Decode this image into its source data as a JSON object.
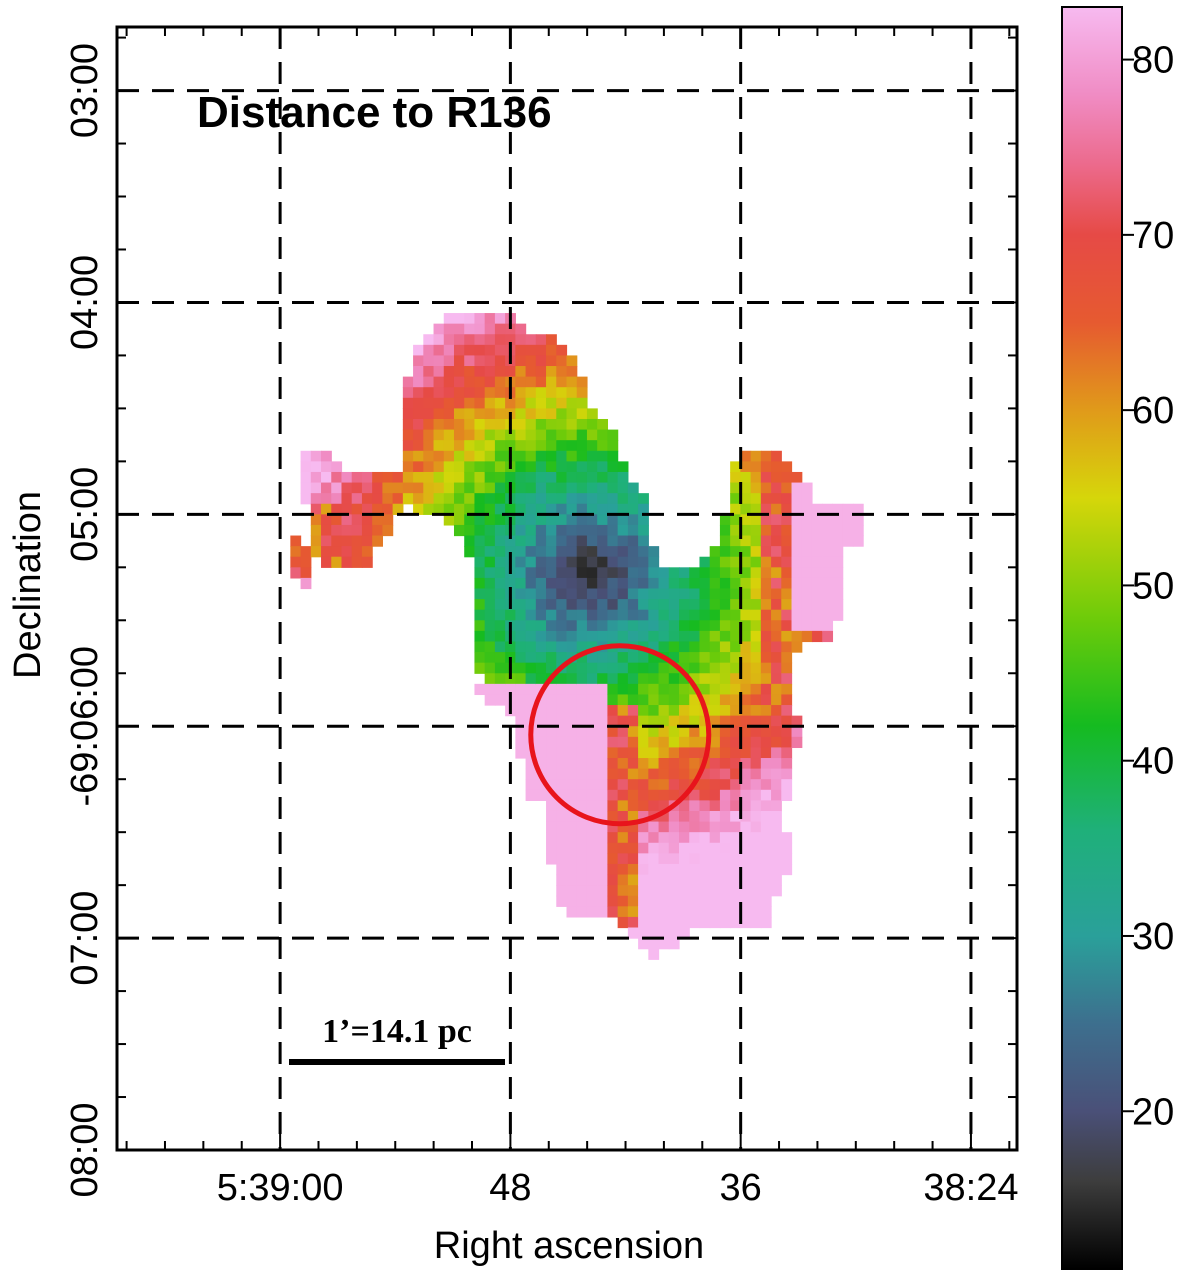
{
  "chart_data": {
    "type": "heatmap",
    "title": "Distance to R136",
    "xlabel": "Right ascension",
    "ylabel": "Declination",
    "x_ticks": [
      {
        "ra_sec": 60,
        "label": "5:39:00"
      },
      {
        "ra_sec": 48,
        "label": "48"
      },
      {
        "ra_sec": 36,
        "label": "36"
      },
      {
        "ra_sec": 24,
        "label": "38:24"
      }
    ],
    "y_ticks": [
      {
        "dec_min": 3,
        "label": "03:00"
      },
      {
        "dec_min": 4,
        "label": "04:00"
      },
      {
        "dec_min": 5,
        "label": "05:00"
      },
      {
        "dec_min": 6,
        "label": "-69:06:00"
      },
      {
        "dec_min": 7,
        "label": "07:00"
      },
      {
        "dec_min": 8,
        "label": "08:00"
      }
    ],
    "xlim": [
      68.5,
      21.6
    ],
    "ylim": [
      2.7,
      8.0
    ],
    "grid": "dashed",
    "colorbar": {
      "range": [
        11,
        83
      ],
      "ticks": [
        20,
        30,
        40,
        50,
        60,
        70,
        80
      ],
      "colors": [
        {
          "v": 11,
          "c": "#000000"
        },
        {
          "v": 16,
          "c": "#3d3d3d"
        },
        {
          "v": 20,
          "c": "#4a5078"
        },
        {
          "v": 25,
          "c": "#3d6f8e"
        },
        {
          "v": 30,
          "c": "#2aa09a"
        },
        {
          "v": 36,
          "c": "#1fb07a"
        },
        {
          "v": 42,
          "c": "#15bb20"
        },
        {
          "v": 48,
          "c": "#6ccb0a"
        },
        {
          "v": 55,
          "c": "#d6d60a"
        },
        {
          "v": 60,
          "c": "#e09a1a"
        },
        {
          "v": 65,
          "c": "#e65a30"
        },
        {
          "v": 70,
          "c": "#e64a46"
        },
        {
          "v": 74,
          "c": "#ec6a8c"
        },
        {
          "v": 78,
          "c": "#f08cc4"
        },
        {
          "v": 83,
          "c": "#f7baf0"
        }
      ]
    },
    "annotations": {
      "scale_bar_label": "1’=14.1 pc",
      "circle_color": "#e8141c",
      "circle_center": {
        "ra_sec": 42.3,
        "dec_min": 6.04
      },
      "circle_radius_arcmin": 0.42
    },
    "region": {
      "cell_deg_ra_sec": 0.533,
      "cell_arcmin": 0.05,
      "ridge_color_value": 66,
      "R136_center": {
        "ra_sec": 43.8,
        "dec_min": 5.28
      },
      "vertex_ra_sec_dec_min": [
        [
          58.6,
          5.11
        ],
        [
          58.8,
          4.7
        ],
        [
          57.6,
          4.7
        ],
        [
          56.5,
          4.82
        ],
        [
          53.4,
          4.82
        ],
        [
          53.8,
          4.5
        ],
        [
          52.8,
          4.2
        ],
        [
          51.2,
          4.05
        ],
        [
          48.2,
          4.05
        ],
        [
          47.4,
          4.12
        ],
        [
          45.2,
          4.18
        ],
        [
          44.4,
          4.35
        ],
        [
          43.4,
          4.55
        ],
        [
          42.4,
          4.62
        ],
        [
          42.0,
          4.8
        ],
        [
          41.0,
          4.9
        ],
        [
          40.4,
          5.25
        ],
        [
          38.4,
          5.25
        ],
        [
          37.2,
          5.15
        ],
        [
          36.2,
          4.7
        ],
        [
          34.2,
          4.7
        ],
        [
          31.8,
          4.95
        ],
        [
          29.6,
          4.95
        ],
        [
          29.4,
          5.1
        ],
        [
          30.8,
          5.2
        ],
        [
          31.0,
          5.6
        ],
        [
          32.8,
          5.6
        ],
        [
          33.6,
          5.8
        ],
        [
          32.8,
          6.0
        ],
        [
          33.8,
          6.4
        ],
        [
          33.2,
          6.65
        ],
        [
          34.2,
          6.8
        ],
        [
          34.2,
          6.97
        ],
        [
          38.6,
          6.97
        ],
        [
          39.8,
          7.05
        ],
        [
          40.6,
          7.1
        ],
        [
          42.4,
          6.92
        ],
        [
          45.2,
          6.92
        ],
        [
          45.4,
          6.85
        ],
        [
          46.2,
          6.52
        ],
        [
          46.2,
          6.35
        ],
        [
          47.4,
          6.35
        ],
        [
          47.4,
          6.2
        ],
        [
          48.0,
          5.95
        ],
        [
          50.0,
          5.85
        ],
        [
          49.4,
          5.78
        ],
        [
          50.0,
          5.7
        ],
        [
          49.8,
          5.3
        ],
        [
          50.4,
          5.1
        ],
        [
          51.8,
          5.02
        ],
        [
          52.0,
          5.0
        ],
        [
          53.6,
          4.97
        ],
        [
          55.6,
          5.25
        ],
        [
          57.4,
          5.25
        ],
        [
          59.2,
          5.1
        ],
        [
          59.6,
          5.25
        ],
        [
          58.6,
          5.35
        ],
        [
          58.2,
          5.05
        ]
      ]
    }
  }
}
